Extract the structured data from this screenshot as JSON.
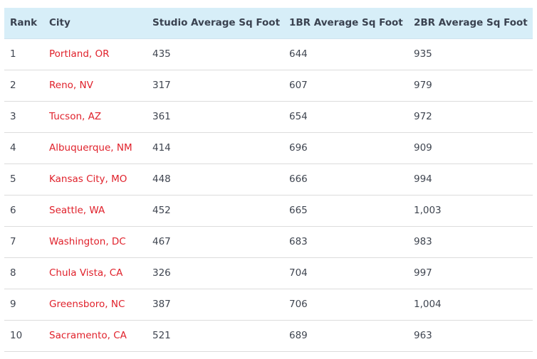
{
  "table": {
    "headers": [
      "Rank",
      "City",
      "Studio Average Sq Foot",
      "1BR Average Sq Foot",
      "2BR Average Sq Foot"
    ],
    "rows": [
      {
        "rank": "1",
        "city": "Portland, OR",
        "studio": "435",
        "one_br": "644",
        "two_br": "935"
      },
      {
        "rank": "2",
        "city": "Reno, NV",
        "studio": "317",
        "one_br": "607",
        "two_br": "979"
      },
      {
        "rank": "3",
        "city": "Tucson, AZ",
        "studio": "361",
        "one_br": "654",
        "two_br": "972"
      },
      {
        "rank": "4",
        "city": "Albuquerque, NM",
        "studio": "414",
        "one_br": "696",
        "two_br": "909"
      },
      {
        "rank": "5",
        "city": "Kansas City, MO",
        "studio": "448",
        "one_br": "666",
        "two_br": "994"
      },
      {
        "rank": "6",
        "city": "Seattle, WA",
        "studio": "452",
        "one_br": "665",
        "two_br": "1,003"
      },
      {
        "rank": "7",
        "city": "Washington, DC",
        "studio": "467",
        "one_br": "683",
        "two_br": "983"
      },
      {
        "rank": "8",
        "city": "Chula Vista, CA",
        "studio": "326",
        "one_br": "704",
        "two_br": "997"
      },
      {
        "rank": "9",
        "city": "Greensboro, NC",
        "studio": "387",
        "one_br": "706",
        "two_br": "1,004"
      },
      {
        "rank": "10",
        "city": "Sacramento, CA",
        "studio": "521",
        "one_br": "689",
        "two_br": "963"
      }
    ]
  },
  "colors": {
    "header_bg": "#d7eef8",
    "link": "#e0212b",
    "text": "#3f4550",
    "row_border": "#dcdcdc"
  }
}
